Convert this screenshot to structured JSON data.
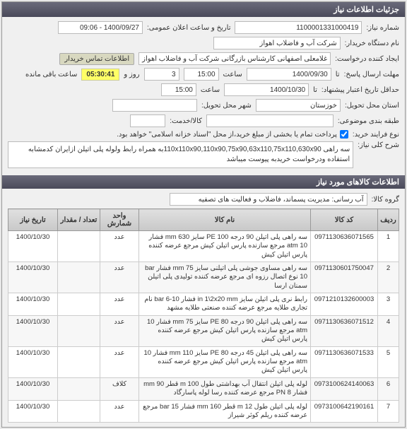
{
  "panel_title": "جزئیات اطلاعات نیاز",
  "header": {
    "labels": {
      "need_no": "شماره نیاز:",
      "buyer_org": "نام دستگاه خریدار:",
      "requester": "ایجاد کننده درخواست:",
      "response_deadline": "مهلت ارسال پاسخ:",
      "expiry_date": "حداقل تاریخ اعتبار پیشنهاد:",
      "delivery_province": "استان محل تحویل:",
      "delivery_city": "شهر محل تحویل:",
      "product_path": "طبقه بندی موضوعی:",
      "buy_terms": "نوع فرایند خرید:",
      "pub_time": "تاریخ و ساعت اعلان عمومی:",
      "contact_info": "اطلاعات تماس خریدار",
      "remaining": "ساعت باقی مانده",
      "until": "تا",
      "hour": "ساعت",
      "and_day": "روز و",
      "goods_service": "کالا/خدمت:"
    },
    "values": {
      "need_no": "1100001331000419",
      "pub_time": "1400/09/27 - 09:06",
      "buyer_org": "شرکت آب و فاضلاب اهواز",
      "requester": "غلامعلی اصفهانی کارشناس بازرگانی شرکت آب و فاضلاب اهواز",
      "response_date": "1400/09/30",
      "response_time": "15:00",
      "days_remain": "3",
      "timer": "05:30:41",
      "expiry_date": "1400/10/30",
      "expiry_time": "15:00",
      "province": "خوزستان",
      "city": "",
      "product_path": "",
      "goods_service": "",
      "terms_note": "پرداخت تمام یا بخشی از مبلغ خرید،از محل \"اسناد خزانه اسلامی\" خواهد بود."
    }
  },
  "desc": {
    "title": "شرح کلی نیاز:",
    "text": "سه راهی 110x110x90,110x90,75x90,63x110,75x110,630x90به همراه رابط ولوله پلی اتیلن ازایران کدمشابه استفاده ودرخواست خریدبه پیوست میباشد"
  },
  "items_header": "اطلاعات کالاهای مورد نیاز",
  "group": {
    "label": "گروه کالا:",
    "value": "آب رسانی: مدیریت پسماند، فاضلاب و فعالیت های تصفیه"
  },
  "table": {
    "columns": [
      "ردیف",
      "کد کالا",
      "نام کالا",
      "واحد شمارش",
      "تعداد / مقدار",
      "تاریخ نیاز"
    ],
    "rows": [
      {
        "idx": "1",
        "code": "0971130636071565",
        "name": "سه راهی پلی اتیلن 90 درجه PE 100 سایز mm 630 فشار 10 atm مرجع سازنده پارس اتیلن کیش مرجع عرضه کننده پارس اتیلن کیش",
        "unit": "عدد",
        "qty": "",
        "date": "1400/10/30"
      },
      {
        "idx": "2",
        "code": "0971130601750047",
        "name": "سه راهی مساوی جوشی پلی اتیلنی سایز mm 75 فشار bar 10 نوع اتصال رزوه ای مرجع عرضه کننده تولیدی پلی اتیلن سمنان ارسا",
        "unit": "عدد",
        "qty": "",
        "date": "1400/10/30"
      },
      {
        "idx": "3",
        "code": "0971210132600003",
        "name": "رابط نری پلی اتیلن سایز in 1\\2x20 mm فشار bar 6-10 نام تجاری طلایه مرجع عرضه کننده صنعتی طلایه مشهد",
        "unit": "عدد",
        "qty": "",
        "date": "1400/10/30"
      },
      {
        "idx": "4",
        "code": "0971130636071512",
        "name": "سه راهی پلی اتیلن 90 درجه PE 80 سایز mm 75 فشار 10 atm مرجع سازنده پارس اتیلن کیش مرجع عرضه کننده پارس اتیلن کیش",
        "unit": "عدد",
        "qty": "",
        "date": "1400/10/30"
      },
      {
        "idx": "5",
        "code": "0971130636071533",
        "name": "سه راهی پلی اتیلن 45 درجه PE 80 سایز mm 110 فشار 10 atm مرجع سازنده پارس اتیلن کیش مرجع عرضه کننده پارس اتیلن کیش",
        "unit": "عدد",
        "qty": "",
        "date": "1400/10/30"
      },
      {
        "idx": "6",
        "code": "0973100624140063",
        "name": "لوله پلی اتیلن انتقال آب بهداشتی طول m 100 قطر mm 90 فشار PN 8 مرجع عرضه کننده رسا لوله پاسارگاد",
        "unit": "کلاف",
        "qty": "",
        "date": "1400/10/30"
      },
      {
        "idx": "7",
        "code": "0973100642190161",
        "name": "لوله پلی اتیلن طول m 12 قطر mm 160 فشار bar 15 مرجع عرضه کننده ریلم کوثر شیراز",
        "unit": "عدد",
        "qty": "",
        "date": "1400/10/30"
      }
    ]
  }
}
